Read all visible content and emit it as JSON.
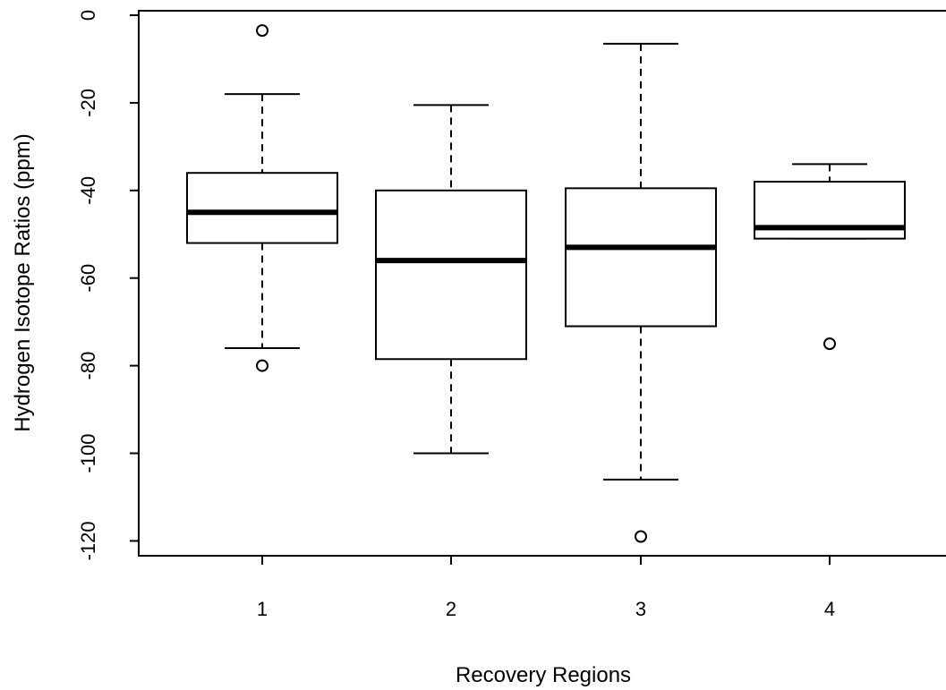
{
  "chart_data": {
    "type": "boxplot",
    "title": "",
    "xlabel": "Recovery Regions",
    "ylabel": "Hydrogen Isotope Ratios (ppm)",
    "ylim": [
      -124,
      0
    ],
    "y_ticks": [
      0,
      -20,
      -40,
      -60,
      -80,
      -100,
      -120
    ],
    "grid": false,
    "categories": [
      "1",
      "2",
      "3",
      "4"
    ],
    "boxes": [
      {
        "category": "1",
        "whisker_low": -76,
        "q1": -52,
        "median": -45,
        "q3": -36,
        "whisker_high": -18,
        "outliers": [
          -3.5,
          -80
        ]
      },
      {
        "category": "2",
        "whisker_low": -100,
        "q1": -78.5,
        "median": -56,
        "q3": -40,
        "whisker_high": -20.5,
        "outliers": []
      },
      {
        "category": "3",
        "whisker_low": -106,
        "q1": -71,
        "median": -53,
        "q3": -39.5,
        "whisker_high": -6.5,
        "outliers": [
          -119
        ]
      },
      {
        "category": "4",
        "whisker_low": -51,
        "q1": -51,
        "median": -48.5,
        "q3": -38,
        "whisker_high": -34,
        "outliers": [
          -75
        ]
      }
    ]
  }
}
